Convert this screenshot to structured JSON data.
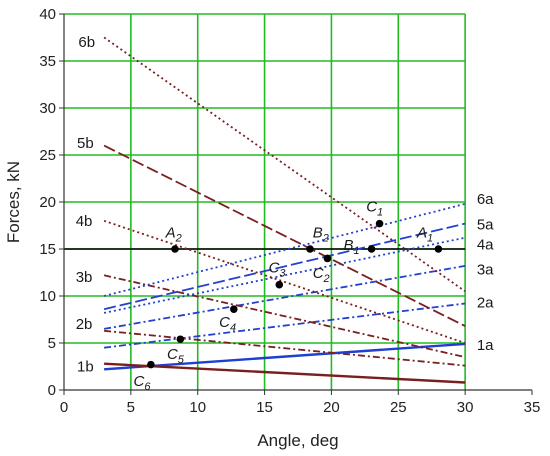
{
  "chart_data": {
    "type": "line",
    "title": "",
    "xlabel": "Angle, deg",
    "ylabel": "Forces, kN",
    "xlim": [
      0,
      35
    ],
    "ylim": [
      0,
      40
    ],
    "x_ticks": [
      0,
      5,
      10,
      15,
      20,
      25,
      30,
      35
    ],
    "y_ticks": [
      0,
      5,
      10,
      15,
      20,
      25,
      30,
      35,
      40
    ],
    "x_tick_labels": [
      "0",
      "5",
      "10",
      "15",
      "20",
      "25",
      "30",
      "35"
    ],
    "y_tick_labels": [
      "0",
      "5",
      "10",
      "15",
      "20",
      "25",
      "30",
      "35",
      "40"
    ],
    "grid": true,
    "grid_color": "#22bb22",
    "grid_range": {
      "x": [
        0,
        30
      ],
      "y": [
        0,
        40
      ]
    },
    "hline": {
      "y": 15,
      "color": "#000000"
    },
    "series": [
      {
        "name": "1a",
        "x": [
          3,
          30
        ],
        "y": [
          2.2,
          4.9
        ],
        "color": "#1f3fd0",
        "dash": "solid",
        "width": 2.4
      },
      {
        "name": "1b",
        "x": [
          3,
          30
        ],
        "y": [
          2.8,
          0.8
        ],
        "color": "#7a1f1f",
        "dash": "solid",
        "width": 2.4
      },
      {
        "name": "2a",
        "x": [
          3,
          30
        ],
        "y": [
          4.5,
          9.2
        ],
        "color": "#2340d0",
        "dash": "dashdot",
        "width": 1.8
      },
      {
        "name": "2b",
        "x": [
          3,
          30
        ],
        "y": [
          6.3,
          2.6
        ],
        "color": "#7a1f1f",
        "dash": "dashdot",
        "width": 1.8
      },
      {
        "name": "3a",
        "x": [
          3,
          30
        ],
        "y": [
          6.5,
          13.2
        ],
        "color": "#2340d0",
        "dash": "dashdot",
        "width": 1.8
      },
      {
        "name": "3b",
        "x": [
          3,
          30
        ],
        "y": [
          12.2,
          3.5
        ],
        "color": "#7a1f1f",
        "dash": "dashdot",
        "width": 1.8
      },
      {
        "name": "4a",
        "x": [
          3,
          30
        ],
        "y": [
          8.2,
          16.2
        ],
        "color": "#2340d0",
        "dash": "dotted",
        "width": 1.8
      },
      {
        "name": "4b",
        "x": [
          3,
          30
        ],
        "y": [
          18.0,
          5.0
        ],
        "color": "#7a1f1f",
        "dash": "dotted",
        "width": 1.8
      },
      {
        "name": "5a",
        "x": [
          3,
          30
        ],
        "y": [
          8.6,
          17.7
        ],
        "color": "#2340d0",
        "dash": "longdash",
        "width": 1.8
      },
      {
        "name": "5b",
        "x": [
          3,
          30
        ],
        "y": [
          26.0,
          6.8
        ],
        "color": "#7a1f1f",
        "dash": "longdash",
        "width": 1.8
      },
      {
        "name": "6a",
        "x": [
          3,
          30
        ],
        "y": [
          10.0,
          19.8
        ],
        "color": "#2340d0",
        "dash": "dotted",
        "width": 1.8
      },
      {
        "name": "6b",
        "x": [
          3,
          30
        ],
        "y": [
          37.5,
          10.5
        ],
        "color": "#7a1f1f",
        "dash": "dotted",
        "width": 1.8
      }
    ],
    "line_labels": [
      {
        "text": "6b",
        "x": 1.7,
        "y": 37
      },
      {
        "text": "5b",
        "x": 1.6,
        "y": 26.3
      },
      {
        "text": "4b",
        "x": 1.5,
        "y": 18
      },
      {
        "text": "3b",
        "x": 1.5,
        "y": 12
      },
      {
        "text": "2b",
        "x": 1.5,
        "y": 7.0
      },
      {
        "text": "1b",
        "x": 1.6,
        "y": 2.5
      },
      {
        "text": "6a",
        "x": 31.5,
        "y": 20.3
      },
      {
        "text": "5a",
        "x": 31.5,
        "y": 17.6
      },
      {
        "text": "4a",
        "x": 31.5,
        "y": 15.5
      },
      {
        "text": "3a",
        "x": 31.5,
        "y": 12.8
      },
      {
        "text": "2a",
        "x": 31.5,
        "y": 9.3
      },
      {
        "text": "1a",
        "x": 31.5,
        "y": 4.8
      }
    ],
    "points": [
      {
        "label": "A",
        "sub": "1",
        "x": 28.0,
        "y": 15.0,
        "label_x": 26.4,
        "label_y": 16.2
      },
      {
        "label": "A",
        "sub": "2",
        "x": 8.3,
        "y": 15.0,
        "label_x": 7.6,
        "label_y": 16.2
      },
      {
        "label": "B",
        "sub": "1",
        "x": 23.0,
        "y": 15.0,
        "label_x": 20.9,
        "label_y": 14.9
      },
      {
        "label": "B",
        "sub": "2",
        "x": 18.4,
        "y": 15.0,
        "label_x": 18.6,
        "label_y": 16.2
      },
      {
        "label": "C",
        "sub": "1",
        "x": 23.6,
        "y": 17.7,
        "label_x": 22.6,
        "label_y": 19.0
      },
      {
        "label": "C",
        "sub": "2",
        "x": 19.7,
        "y": 14.0,
        "label_x": 18.6,
        "label_y": 11.9
      },
      {
        "label": "C",
        "sub": "3",
        "x": 16.1,
        "y": 11.2,
        "label_x": 15.3,
        "label_y": 12.5
      },
      {
        "label": "C",
        "sub": "4",
        "x": 12.7,
        "y": 8.6,
        "label_x": 11.6,
        "label_y": 6.7
      },
      {
        "label": "C",
        "sub": "5",
        "x": 8.7,
        "y": 5.4,
        "label_x": 7.7,
        "label_y": 3.3
      },
      {
        "label": "C",
        "sub": "6",
        "x": 6.5,
        "y": 2.7,
        "label_x": 5.2,
        "label_y": 0.4
      }
    ]
  }
}
